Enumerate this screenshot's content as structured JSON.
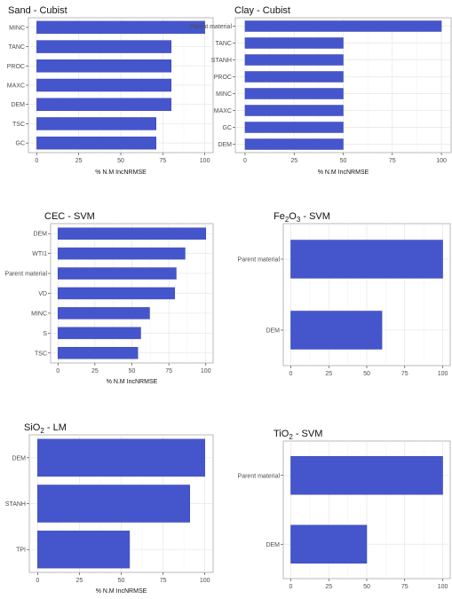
{
  "chart_data": [
    {
      "type": "bar",
      "orientation": "horizontal",
      "title": "Sand - Cubist",
      "xlabel": "% N.M IncNRMSE",
      "xlim": [
        0,
        100
      ],
      "xticks": [
        "0",
        "25",
        "50",
        "75",
        "100"
      ],
      "categories": [
        "MINC",
        "TANC",
        "PROC",
        "MAXC",
        "DEM",
        "TSC",
        "GC"
      ],
      "values": [
        100,
        80,
        80,
        80,
        80,
        71,
        71
      ],
      "bar_color": "#4556cc",
      "grid": true
    },
    {
      "type": "bar",
      "orientation": "horizontal",
      "title": "Clay - Cubist",
      "xlabel": "% N.M IncNRMSE",
      "xlim": [
        0,
        100
      ],
      "xticks": [
        "0",
        "25",
        "50",
        "75",
        "100"
      ],
      "categories": [
        "Parent material",
        "TANC",
        "STANH",
        "PROC",
        "MINC",
        "MAXC",
        "GC",
        "DEM"
      ],
      "values": [
        100,
        50,
        50,
        50,
        50,
        50,
        50,
        50
      ],
      "bar_color": "#4556cc",
      "grid": true
    },
    {
      "type": "bar",
      "orientation": "horizontal",
      "title": "CEC - SVM",
      "xlabel": "% N.M IncNRMSE",
      "xlim": [
        0,
        100
      ],
      "xticks": [
        "0",
        "25",
        "50",
        "75",
        "100"
      ],
      "categories": [
        "DEM",
        "WTI1",
        "Parent material",
        "VD",
        "MINC",
        "S",
        "TSC"
      ],
      "values": [
        100,
        86,
        80,
        79,
        62,
        56,
        54
      ],
      "bar_color": "#4556cc",
      "grid": true
    },
    {
      "type": "bar",
      "orientation": "horizontal",
      "title_main": "Fe",
      "title_sub": "2",
      "title_rest": "O",
      "title_sub2": "3",
      "title_tail": " - SVM",
      "xlabel": "",
      "xlim": [
        0,
        100
      ],
      "xticks": [
        "0",
        "25",
        "50",
        "75",
        "100"
      ],
      "categories": [
        "Parent material",
        "DEM"
      ],
      "values": [
        100,
        60
      ],
      "bar_color": "#4556cc",
      "grid": true
    },
    {
      "type": "bar",
      "orientation": "horizontal",
      "title_main": "SiO",
      "title_sub": "2",
      "title_tail": " - LM",
      "xlabel": "% N.M IncNRMSE",
      "xlim": [
        0,
        100
      ],
      "xticks": [
        "0",
        "25",
        "50",
        "75",
        "100"
      ],
      "categories": [
        "DEM",
        "STANH",
        "TPI"
      ],
      "values": [
        100,
        91,
        55
      ],
      "bar_color": "#4556cc",
      "grid": true
    },
    {
      "type": "bar",
      "orientation": "horizontal",
      "title_main": "TiO",
      "title_sub": "2",
      "title_tail": " - SVM",
      "xlabel": "",
      "xlim": [
        0,
        100
      ],
      "xticks": [
        "0",
        "25",
        "50",
        "75",
        "100"
      ],
      "categories": [
        "Parent material",
        "DEM"
      ],
      "values": [
        100,
        50
      ],
      "bar_color": "#4556cc",
      "grid": true
    }
  ]
}
